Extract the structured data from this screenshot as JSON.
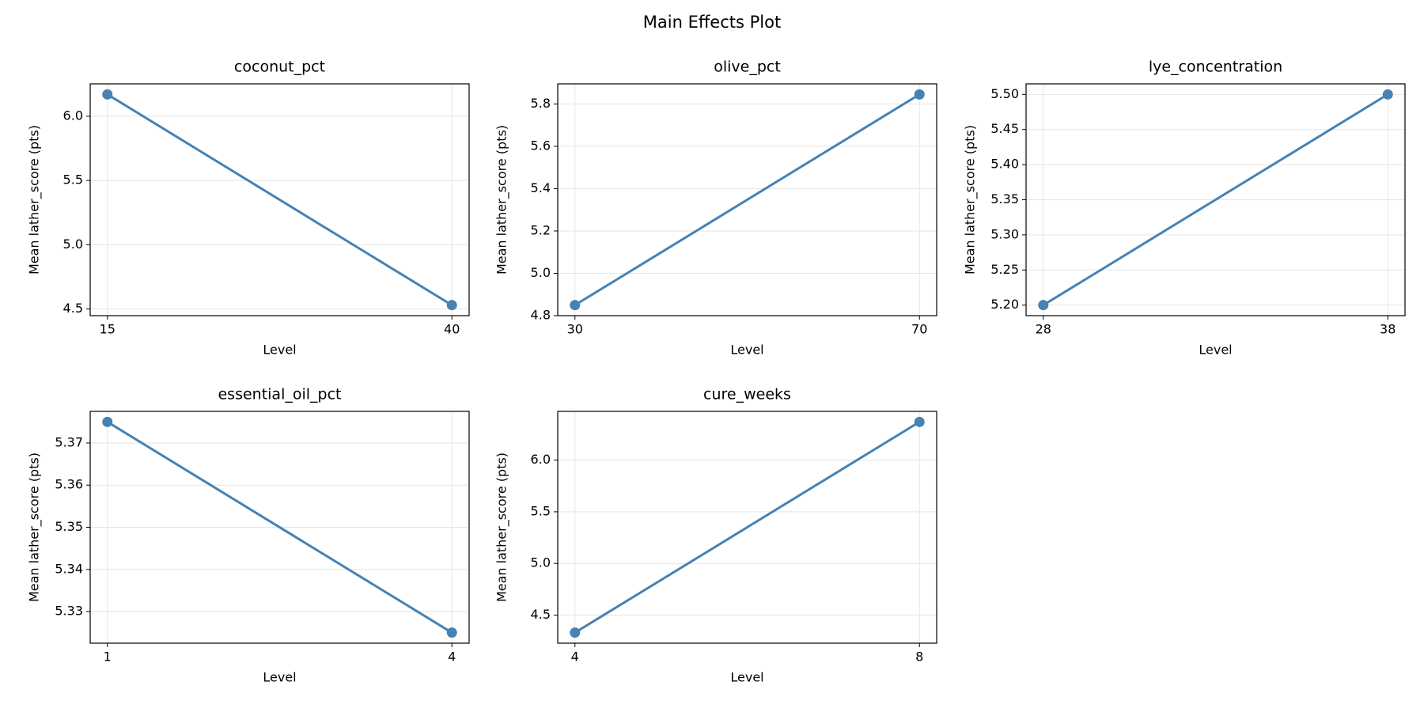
{
  "title": "Main Effects Plot",
  "chart_data": [
    {
      "type": "line",
      "title": "coconut_pct",
      "x_label": "Level",
      "y_label": "Mean lather_score (pts)",
      "x": [
        15,
        40
      ],
      "values": [
        6.17,
        4.53
      ],
      "color": "#4682b4",
      "xlim": [
        13.75,
        41.25
      ],
      "xticks": [
        15,
        40
      ],
      "ylim": [
        4.448,
        6.252
      ],
      "yticks": [
        4.5,
        {
          "value": 5.0,
          "label": "5.0"
        },
        5.5,
        {
          "value": 6.0,
          "label": "6.0"
        }
      ],
      "grid": true
    },
    {
      "type": "line",
      "title": "olive_pct",
      "x_label": "Level",
      "y_label": "Mean lather_score (pts)",
      "x": [
        30,
        70
      ],
      "values": [
        4.85,
        5.845
      ],
      "color": "#4682b4",
      "xlim": [
        28,
        72
      ],
      "xticks": [
        30,
        70
      ],
      "ylim": [
        4.8,
        5.895
      ],
      "yticks": [
        4.8,
        {
          "value": 5.0,
          "label": "5.0"
        },
        5.2,
        5.4,
        5.6,
        5.8
      ],
      "grid": true
    },
    {
      "type": "line",
      "title": "lye_concentration",
      "x_label": "Level",
      "y_label": "Mean lather_score (pts)",
      "x": [
        28,
        38
      ],
      "values": [
        5.2,
        5.5
      ],
      "color": "#4682b4",
      "xlim": [
        27.5,
        38.5
      ],
      "xticks": [
        28,
        38
      ],
      "ylim": [
        5.185,
        5.515
      ],
      "yticks": [
        {
          "value": 5.2,
          "label": "5.20"
        },
        5.25,
        {
          "value": 5.3,
          "label": "5.30"
        },
        5.35,
        {
          "value": 5.4,
          "label": "5.40"
        },
        5.45,
        {
          "value": 5.5,
          "label": "5.50"
        }
      ],
      "grid": true
    },
    {
      "type": "line",
      "title": "essential_oil_pct",
      "x_label": "Level",
      "y_label": "Mean lather_score (pts)",
      "x": [
        1,
        4
      ],
      "values": [
        5.375,
        5.325
      ],
      "color": "#4682b4",
      "xlim": [
        0.85,
        4.15
      ],
      "xticks": [
        1,
        4
      ],
      "ylim": [
        5.3225,
        5.3775
      ],
      "yticks": [
        5.33,
        5.34,
        5.35,
        5.36,
        5.37
      ],
      "grid": true
    },
    {
      "type": "line",
      "title": "cure_weeks",
      "x_label": "Level",
      "y_label": "Mean lather_score (pts)",
      "x": [
        4,
        8
      ],
      "values": [
        4.33,
        6.37
      ],
      "color": "#4682b4",
      "xlim": [
        3.8,
        8.2
      ],
      "xticks": [
        4,
        8
      ],
      "ylim": [
        4.228,
        6.472
      ],
      "yticks": [
        4.5,
        {
          "value": 5.0,
          "label": "5.0"
        },
        5.5,
        {
          "value": 6.0,
          "label": "6.0"
        }
      ],
      "grid": true
    }
  ]
}
